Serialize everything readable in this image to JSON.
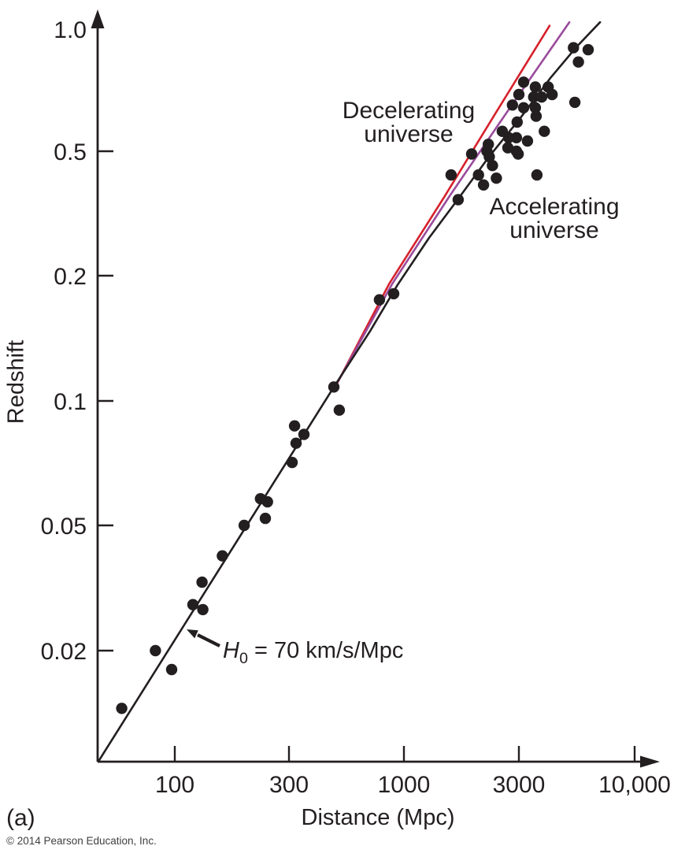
{
  "figure": {
    "panel_label": "(a)",
    "copyright": "© 2014 Pearson Education, Inc."
  },
  "chart_data": {
    "type": "scatter",
    "xlabel": "Distance (Mpc)",
    "ylabel": "Redshift",
    "x_scale": "log",
    "y_scale": "log",
    "x_axis_range_approx": [
      48,
      10000
    ],
    "y_axis_range_approx": [
      0.011,
      1.05
    ],
    "grid": false,
    "legend": "none (labels placed as annotations)",
    "colors": {
      "ink": "#231f20",
      "red_curve": "#d6212b",
      "purple_curve": "#9a4a9c",
      "background": "#ffffff"
    },
    "x_ticks": [
      {
        "value": 100,
        "label": "100"
      },
      {
        "value": 300,
        "label": "300"
      },
      {
        "value": 1000,
        "label": "1000"
      },
      {
        "value": 3000,
        "label": "3000"
      },
      {
        "value": 10000,
        "label": "10,000"
      }
    ],
    "y_ticks": [
      {
        "value": 1.0,
        "label": "1.0",
        "tick": false
      },
      {
        "value": 0.5,
        "label": "0.5",
        "tick": true
      },
      {
        "value": 0.2,
        "label": "0.2",
        "tick": true
      },
      {
        "value": 0.1,
        "label": "0.1",
        "tick": true
      },
      {
        "value": 0.05,
        "label": "0.05",
        "tick": true
      },
      {
        "value": 0.02,
        "label": "0.02",
        "tick": true
      }
    ],
    "points": [
      [
        60,
        0.0145
      ],
      [
        83,
        0.02
      ],
      [
        97,
        0.018
      ],
      [
        119,
        0.028
      ],
      [
        130,
        0.033
      ],
      [
        131,
        0.027
      ],
      [
        158,
        0.04
      ],
      [
        195,
        0.05
      ],
      [
        228,
        0.058
      ],
      [
        239,
        0.052
      ],
      [
        244,
        0.057
      ],
      [
        310,
        0.071
      ],
      [
        318,
        0.087
      ],
      [
        323,
        0.079
      ],
      [
        351,
        0.083
      ],
      [
        480,
        0.108
      ],
      [
        508,
        0.095
      ],
      [
        774,
        0.175
      ],
      [
        898,
        0.181
      ],
      [
        1570,
        0.42
      ],
      [
        1680,
        0.35
      ],
      [
        1910,
        0.49
      ],
      [
        2040,
        0.42
      ],
      [
        2140,
        0.39
      ],
      [
        2210,
        0.5
      ],
      [
        2240,
        0.52
      ],
      [
        2260,
        0.48
      ],
      [
        2330,
        0.45
      ],
      [
        2420,
        0.41
      ],
      [
        2560,
        0.56
      ],
      [
        2700,
        0.51
      ],
      [
        2720,
        0.54
      ],
      [
        2820,
        0.65
      ],
      [
        2930,
        0.5
      ],
      [
        2930,
        0.54
      ],
      [
        2950,
        0.59
      ],
      [
        2980,
        0.49
      ],
      [
        3000,
        0.69
      ],
      [
        3150,
        0.64
      ],
      [
        3150,
        0.74
      ],
      [
        3280,
        0.53
      ],
      [
        3500,
        0.68
      ],
      [
        3560,
        0.64
      ],
      [
        3560,
        0.72
      ],
      [
        3590,
        0.61
      ],
      [
        3620,
        0.42
      ],
      [
        3800,
        0.68
      ],
      [
        3910,
        0.56
      ],
      [
        4070,
        0.72
      ],
      [
        4240,
        0.69
      ],
      [
        5290,
        0.9
      ],
      [
        5370,
        0.66
      ],
      [
        5570,
        0.83
      ],
      [
        6170,
        0.89
      ]
    ],
    "curves": [
      {
        "name": "red-model-curve",
        "color": "#d6212b",
        "width": 2.6,
        "points": [
          [
            496,
            0.11
          ],
          [
            856,
            0.191
          ],
          [
            1470,
            0.357
          ],
          [
            2420,
            0.625
          ],
          [
            4130,
            1.02
          ]
        ]
      },
      {
        "name": "purple-model-curve",
        "color": "#9a4a9c",
        "width": 2.6,
        "points": [
          [
            500,
            0.111
          ],
          [
            884,
            0.191
          ],
          [
            1550,
            0.36
          ],
          [
            2700,
            0.629
          ],
          [
            5070,
            1.04
          ]
        ]
      },
      {
        "name": "hubble-law-fit-curve",
        "color": "#231f20",
        "width": 2.6,
        "points": [
          [
            48,
            0.0108
          ],
          [
            480,
            0.108
          ],
          [
            701,
            0.147
          ],
          [
            935,
            0.19
          ],
          [
            1270,
            0.264
          ],
          [
            1680,
            0.352
          ],
          [
            2240,
            0.477
          ],
          [
            3020,
            0.6
          ],
          [
            4180,
            0.76
          ],
          [
            5480,
            0.906
          ],
          [
            6980,
            1.04
          ]
        ]
      }
    ],
    "annotations": {
      "decelerating": {
        "line1": "Decelerating",
        "line2": "universe"
      },
      "accelerating": {
        "line1": "Accelerating",
        "line2": "universe"
      },
      "hubble": {
        "symbol": "H",
        "subscript": "0",
        "rest": " = 70 km/s/Mpc"
      }
    }
  }
}
